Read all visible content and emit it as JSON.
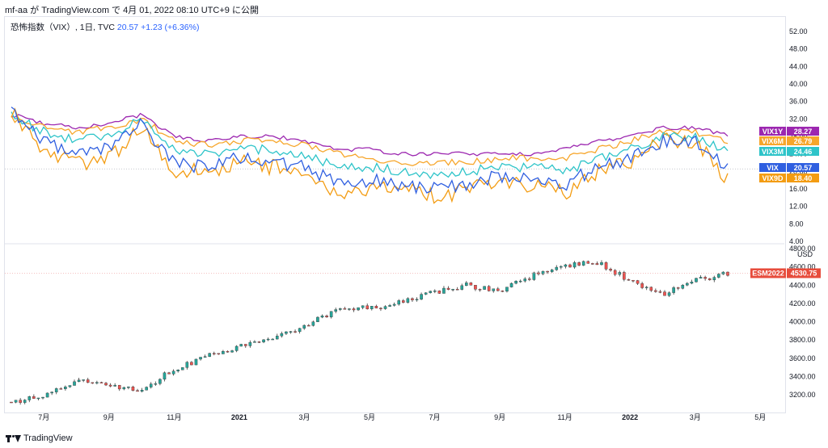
{
  "header": {
    "author": "mf-aa",
    "published_text": "mf-aa が TradingView.com で 4月 01, 2022 08:10 UTC+9 に公開"
  },
  "legend": {
    "title": "恐怖指数（VIX）, 1日, TVC",
    "last": "20.57",
    "change": "+1.23 (+6.36%)"
  },
  "footer": {
    "brand": "TradingView"
  },
  "colors": {
    "VIX1Y": "#9c27b0",
    "VIX6M": "#f7a62b",
    "VIX3M": "#2ec4c9",
    "VIX": "#2f5fe0",
    "VIX9D": "#f39c12",
    "ES_up": "#26a69a",
    "ES_down": "#ef5350",
    "ES_candle": "#3a3a3a",
    "ES_tag": "#e74c3c"
  },
  "chart_data": [
    {
      "type": "line",
      "ylim": [
        4,
        54
      ],
      "y_ticks": [
        "52.00",
        "48.00",
        "44.00",
        "40.00",
        "36.00",
        "32.00",
        "28.00",
        "24.00",
        "20.00",
        "16.00",
        "12.00",
        "8.00",
        "4.00"
      ],
      "x_ticks": [
        "7月",
        "9月",
        "11月",
        "2021",
        "3月",
        "5月",
        "7月",
        "9月",
        "11月",
        "2022",
        "3月",
        "5月"
      ],
      "x": [
        "2020-06",
        "2020-07",
        "2020-08",
        "2020-09",
        "2020-10",
        "2020-11",
        "2020-12",
        "2021-01",
        "2021-02",
        "2021-03",
        "2021-04",
        "2021-05",
        "2021-06",
        "2021-07",
        "2021-08",
        "2021-09",
        "2021-10",
        "2021-11",
        "2021-12",
        "2022-01",
        "2022-02",
        "2022-03",
        "2022-04"
      ],
      "series": [
        {
          "name": "VIX1Y",
          "last_label": "28.27",
          "values": [
            33,
            31,
            30,
            31,
            33,
            28,
            27,
            28,
            28,
            27,
            25,
            25,
            24,
            24,
            24,
            24,
            24,
            25,
            27,
            28,
            30,
            30,
            28.27
          ]
        },
        {
          "name": "VIX6M",
          "last_label": "26.79",
          "values": [
            32,
            30,
            29,
            30,
            32,
            27,
            26,
            27,
            27,
            26,
            24,
            23,
            22,
            22,
            22,
            23,
            23,
            23,
            25,
            27,
            29,
            29,
            26.79
          ]
        },
        {
          "name": "VIX3M",
          "last_label": "24.46",
          "values": [
            33,
            29,
            27,
            28,
            32,
            25,
            24,
            25,
            25,
            24,
            21,
            21,
            20,
            19,
            20,
            21,
            21,
            20,
            23,
            25,
            28,
            28,
            24.46
          ]
        },
        {
          "name": "VIX",
          "last_label": "20.57",
          "values": [
            34,
            27,
            24,
            25,
            31,
            22,
            21,
            23,
            22,
            21,
            17,
            18,
            17,
            16,
            17,
            19,
            18,
            17,
            21,
            23,
            27,
            27,
            20.57
          ]
        },
        {
          "name": "VIX9D",
          "last_label": "18.40",
          "values": [
            34,
            25,
            22,
            23,
            30,
            20,
            20,
            22,
            21,
            20,
            15,
            16,
            16,
            14,
            16,
            18,
            17,
            15,
            20,
            22,
            27,
            27,
            18.4
          ]
        }
      ]
    },
    {
      "type": "candlestick",
      "unit": "USD",
      "ylim": [
        3050,
        4800
      ],
      "y_ticks": [
        "4800.00",
        "4600.00",
        "4400.00",
        "4200.00",
        "4000.00",
        "3800.00",
        "3600.00",
        "3400.00",
        "3200.00"
      ],
      "series": [
        {
          "name": "ESM2022",
          "last_label": "4530.75",
          "x": [
            "2020-06",
            "2020-07",
            "2020-08",
            "2020-09",
            "2020-10",
            "2020-11",
            "2020-12",
            "2021-01",
            "2021-02",
            "2021-03",
            "2021-04",
            "2021-05",
            "2021-06",
            "2021-07",
            "2021-08",
            "2021-09",
            "2021-10",
            "2021-11",
            "2021-12",
            "2022-01",
            "2022-02",
            "2022-03",
            "2022-04"
          ],
          "values": [
            3120,
            3200,
            3350,
            3300,
            3250,
            3480,
            3620,
            3720,
            3830,
            3950,
            4140,
            4150,
            4210,
            4320,
            4400,
            4340,
            4500,
            4620,
            4650,
            4450,
            4300,
            4450,
            4530.75
          ]
        }
      ]
    }
  ]
}
